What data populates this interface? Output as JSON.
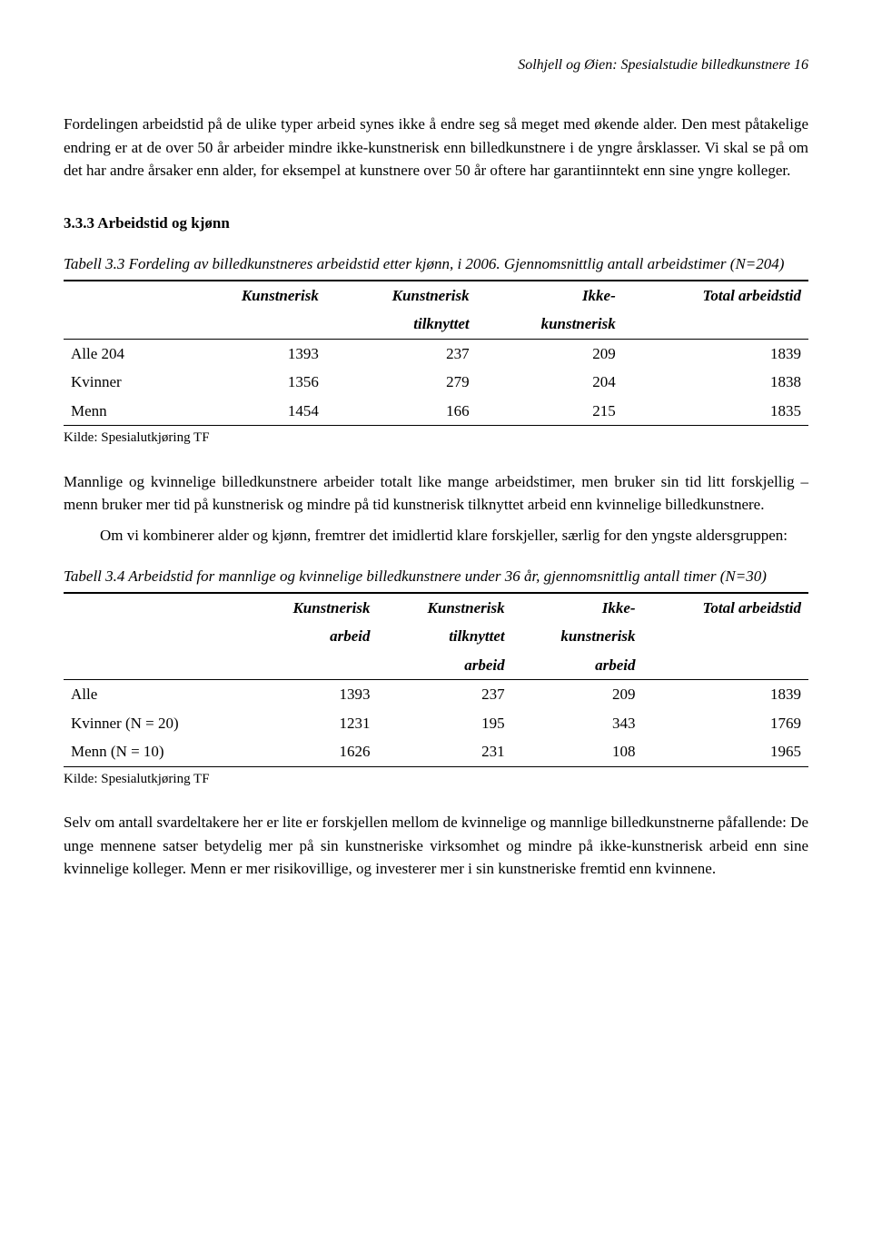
{
  "header": "Solhjell og Øien: Spesialstudie billedkunstnere 16",
  "para1": "Fordelingen arbeidstid på de ulike typer arbeid synes ikke å endre seg så meget med økende alder. Den mest påtakelige endring er at de over 50 år arbeider mindre ikke-kunstnerisk enn billedkunstnere i de yngre årsklasser. Vi skal se på om det har andre årsaker enn alder, for eksempel at kunstnere over 50 år oftere har garantiinntekt enn sine yngre kolleger.",
  "section33": "3.3.3 Arbeidstid og kjønn",
  "caption33": "Tabell 3.3 Fordeling av billedkunstneres arbeidstid etter kjønn, i 2006. Gjennomsnittlig antall arbeidstimer (N=204)",
  "table33": {
    "headers": {
      "c1": "Kunstnerisk",
      "c2a": "Kunstnerisk",
      "c2b": "tilknyttet",
      "c3a": "Ikke-",
      "c3b": "kunstnerisk",
      "c4": "Total arbeidstid"
    },
    "rows": [
      {
        "label": "Alle 204",
        "v1": "1393",
        "v2": "237",
        "v3": "209",
        "v4": "1839"
      },
      {
        "label": "Kvinner",
        "v1": "1356",
        "v2": "279",
        "v3": "204",
        "v4": "1838"
      },
      {
        "label": "Menn",
        "v1": "1454",
        "v2": "166",
        "v3": "215",
        "v4": "1835"
      }
    ]
  },
  "source": "Kilde: Spesialutkjøring TF",
  "para2": "Mannlige og kvinnelige billedkunstnere arbeider totalt like mange arbeidstimer, men bruker sin tid litt forskjellig – menn bruker mer tid  på kunstnerisk og mindre på  tid kunstnerisk tilknyttet arbeid enn kvinnelige billedkunstnere.",
  "para3": "Om vi kombinerer alder og kjønn, fremtrer det imidlertid klare forskjeller, særlig for den yngste aldersgruppen:",
  "caption34": "Tabell 3.4 Arbeidstid for mannlige og kvinnelige billedkunstnere  under 36 år, gjennomsnittlig antall timer (N=30)",
  "table34": {
    "headers": {
      "c1a": "Kunstnerisk",
      "c1b": "arbeid",
      "c2a": "Kunstnerisk",
      "c2b": "tilknyttet",
      "c2c": "arbeid",
      "c3a": "Ikke-",
      "c3b": "kunstnerisk",
      "c3c": "arbeid",
      "c4": "Total arbeidstid"
    },
    "rows": [
      {
        "label": "Alle",
        "v1": "1393",
        "v2": "237",
        "v3": "209",
        "v4": "1839"
      },
      {
        "label": "Kvinner (N = 20)",
        "v1": "1231",
        "v2": "195",
        "v3": "343",
        "v4": "1769"
      },
      {
        "label": "Menn (N = 10)",
        "v1": "1626",
        "v2": "231",
        "v3": "108",
        "v4": "1965"
      }
    ]
  },
  "para4": "Selv om antall svardeltakere her er lite er forskjellen mellom de kvinnelige og mannlige billedkunstnerne påfallende: De unge mennene satser betydelig mer på sin kunstneriske virksomhet og mindre på ikke-kunstnerisk arbeid enn sine kvinnelige kolleger. Menn er mer risikovillige, og investerer mer i sin kunstneriske fremtid enn kvinnene."
}
